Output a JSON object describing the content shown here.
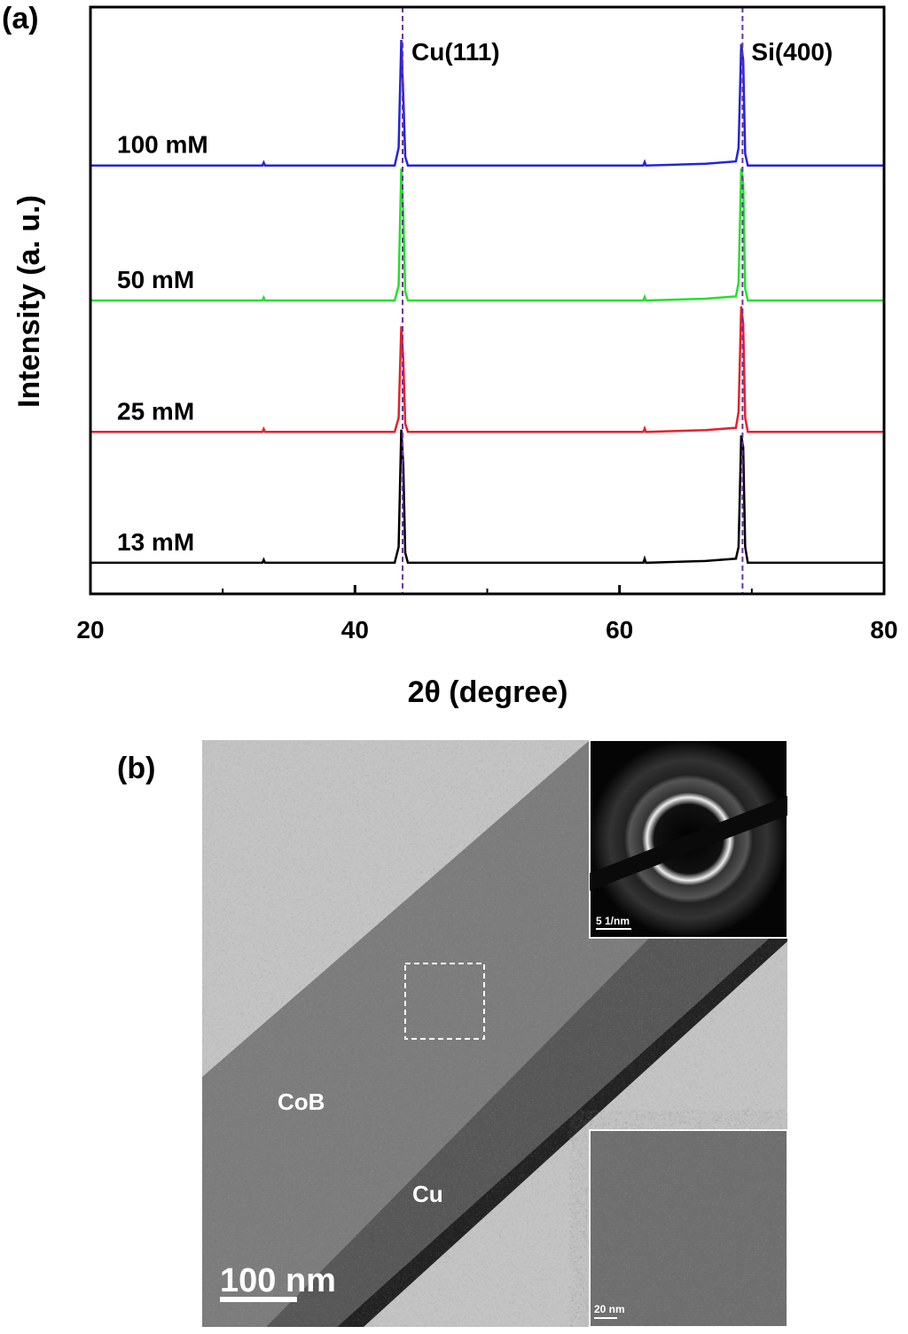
{
  "chart_data": {
    "type": "line",
    "panel_label": "(a)",
    "x_label": "2θ (degree)",
    "y_label": "Intensity (a. u.)",
    "xlim": [
      20,
      80
    ],
    "xticks": [
      20,
      40,
      60,
      80
    ],
    "xminor_ticks": [
      30,
      50,
      70
    ],
    "ylim": [
      0,
      100
    ],
    "x": [
      20,
      33,
      33.1,
      33.2,
      43,
      43.3,
      43.5,
      43.65,
      43.8,
      44,
      61.8,
      61.9,
      62,
      66.5,
      68.8,
      69.0,
      69.2,
      69.35,
      69.5,
      69.7,
      80
    ],
    "series": [
      {
        "name": "13 mM",
        "color": "#000000",
        "values": [
          5.3,
          5.3,
          5.8,
          5.3,
          5.3,
          8,
          28,
          22,
          7,
          5.3,
          5.3,
          6,
          5.3,
          5.6,
          6,
          8,
          27,
          25,
          8,
          5.3,
          5.3
        ]
      },
      {
        "name": "25 mM",
        "color": "#e8202a",
        "values": [
          27.6,
          27.6,
          28.1,
          27.6,
          27.6,
          30,
          45.6,
          40,
          29,
          27.6,
          27.6,
          28.2,
          27.6,
          27.9,
          28.3,
          31,
          49,
          46,
          30,
          27.6,
          27.6
        ]
      },
      {
        "name": "50 mM",
        "color": "#22e22a",
        "values": [
          50,
          50,
          50.5,
          50,
          50,
          52.5,
          72.5,
          65,
          51.5,
          50,
          50,
          50.6,
          50,
          50.3,
          50.7,
          53,
          72.5,
          70,
          52,
          50,
          50
        ]
      },
      {
        "name": "100 mM",
        "color": "#2424dd",
        "values": [
          73,
          73,
          73.5,
          73,
          73,
          76,
          94.4,
          85,
          74.5,
          73,
          73,
          73.6,
          73,
          73.3,
          73.7,
          76,
          93.7,
          91,
          75,
          73,
          73
        ]
      }
    ],
    "reference_lines": [
      {
        "x": 43.6,
        "label": "Cu(111)"
      },
      {
        "x": 69.3,
        "label": "Si(400)"
      }
    ],
    "reference_color": "#7030a0"
  },
  "panel_b": {
    "panel_label": "(b)",
    "layer_labels": [
      "CoB",
      "Cu"
    ],
    "scale_bar": "100 nm",
    "diffraction_scale": "5 1/nm",
    "hrtem_scale": "20 nm"
  }
}
